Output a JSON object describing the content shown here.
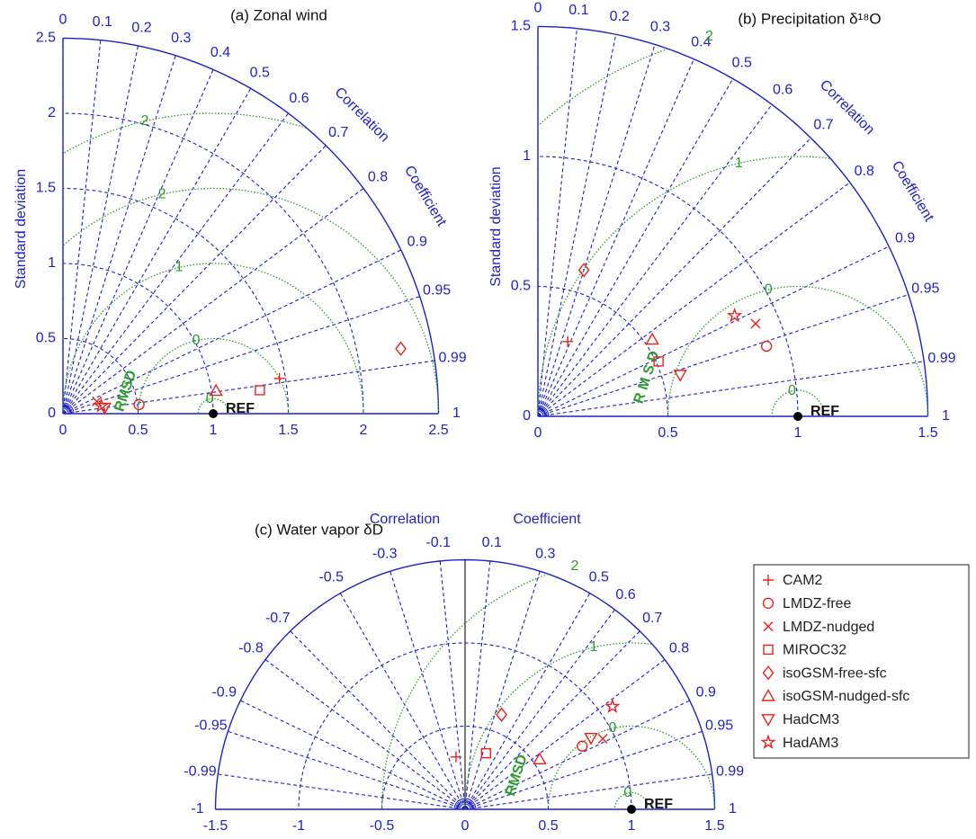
{
  "chart_data": [
    {
      "type": "taylor",
      "title": "(a) Zonal wind",
      "y_label": "Standard deviation",
      "corr_title": [
        "Correlation",
        "Coefficient"
      ],
      "ylim": [
        0,
        2.5
      ],
      "std_ticks": [
        0,
        0.5,
        1,
        1.5,
        2,
        2.5
      ],
      "corr_ticks": [
        0,
        0.1,
        0.2,
        0.3,
        0.4,
        0.5,
        0.6,
        0.7,
        0.8,
        0.9,
        0.95,
        0.99,
        1
      ],
      "ref": 1,
      "ref_label": "REF",
      "rmsd_label": "RMSD",
      "rmsd_contours": [
        {
          "value": 0.1,
          "label": "0"
        },
        {
          "value": 0.5,
          "label": "0"
        },
        {
          "value": 1,
          "label": "1"
        },
        {
          "value": 1.5,
          "label": "2"
        },
        {
          "value": 2,
          "label": "2"
        }
      ],
      "axis_color": "#1f1fcc",
      "contour_color": "#2a9d2a",
      "marker_color": "#e8221a",
      "series": [
        {
          "marker": "plus",
          "std": 1.46,
          "corr": 0.987
        },
        {
          "marker": "circle",
          "std": 0.51,
          "corr": 0.993
        },
        {
          "marker": "x",
          "std": 0.24,
          "corr": 0.94
        },
        {
          "marker": "square",
          "std": 1.32,
          "corr": 0.993
        },
        {
          "marker": "diamond",
          "std": 2.29,
          "corr": 0.982
        },
        {
          "marker": "triangle",
          "std": 1.03,
          "corr": 0.989
        },
        {
          "marker": "triangle-down",
          "std": 0.28,
          "corr": 0.99
        },
        {
          "marker": "star",
          "std": 0.26,
          "corr": 0.98
        }
      ]
    },
    {
      "type": "taylor",
      "title": "(b) Precipitation δ¹⁸O",
      "y_label": "Standard deviation",
      "corr_title": [
        "Correlation",
        "Coefficient"
      ],
      "ylim": [
        0,
        1.5
      ],
      "std_ticks": [
        0,
        0.5,
        1,
        1.5
      ],
      "corr_ticks": [
        0,
        0.1,
        0.2,
        0.3,
        0.4,
        0.5,
        0.6,
        0.7,
        0.8,
        0.9,
        0.95,
        0.99,
        1
      ],
      "ref": 1,
      "ref_label": "REF",
      "rmsd_label": "R M S D",
      "rmsd_contours": [
        {
          "value": 0.1,
          "label": "0"
        },
        {
          "value": 0.5,
          "label": "0"
        },
        {
          "value": 1,
          "label": "1"
        },
        {
          "value": 1.5,
          "label": "2"
        }
      ],
      "axis_color": "#1f1fcc",
      "contour_color": "#2a9d2a",
      "marker_color": "#e8221a",
      "series": [
        {
          "marker": "plus",
          "std": 0.31,
          "corr": 0.37
        },
        {
          "marker": "circle",
          "std": 0.92,
          "corr": 0.956
        },
        {
          "marker": "x",
          "std": 0.91,
          "corr": 0.92
        },
        {
          "marker": "square",
          "std": 0.51,
          "corr": 0.91
        },
        {
          "marker": "diamond",
          "std": 0.59,
          "corr": 0.3
        },
        {
          "marker": "triangle",
          "std": 0.53,
          "corr": 0.83
        },
        {
          "marker": "triangle-down",
          "std": 0.57,
          "corr": 0.96
        },
        {
          "marker": "star",
          "std": 0.85,
          "corr": 0.89
        }
      ]
    },
    {
      "type": "taylor",
      "title": "(c) Water vapor δD",
      "corr_title": [
        "Correlation",
        "Coefficient"
      ],
      "xlim": [
        -1.5,
        1.5
      ],
      "xticks": [
        -1.5,
        -1,
        -0.5,
        0,
        0.5,
        1,
        1.5
      ],
      "corr_ticks": [
        -1,
        -0.99,
        -0.95,
        -0.9,
        -0.8,
        -0.7,
        -0.5,
        -0.3,
        -0.1,
        0.1,
        0.3,
        0.5,
        0.6,
        0.7,
        0.8,
        0.9,
        0.95,
        0.99,
        1
      ],
      "ref": 1,
      "ref_label": "REF",
      "rmsd_label": "RMSD",
      "rmsd_contours": [
        {
          "value": 0.1,
          "label": "0"
        },
        {
          "value": 0.5,
          "label": "0"
        },
        {
          "value": 1,
          "label": "1"
        },
        {
          "value": 1.5,
          "label": "2"
        }
      ],
      "axis_color": "#1f1fcc",
      "contour_color": "#2a9d2a",
      "marker_color": "#e8221a",
      "series": [
        {
          "name": "CAM2",
          "marker": "plus",
          "std": 0.32,
          "corr": -0.17
        },
        {
          "name": "LMDZ-free",
          "marker": "circle",
          "std": 0.8,
          "corr": 0.88
        },
        {
          "name": "LMDZ-nudged",
          "marker": "x",
          "std": 0.93,
          "corr": 0.89
        },
        {
          "name": "MIROC32",
          "marker": "square",
          "std": 0.36,
          "corr": 0.35
        },
        {
          "name": "isoGSM-free-sfc",
          "marker": "diamond",
          "std": 0.61,
          "corr": 0.36
        },
        {
          "name": "isoGSM-nudged-sfc",
          "marker": "triangle",
          "std": 0.54,
          "corr": 0.83
        },
        {
          "name": "HadCM3",
          "marker": "triangle-down",
          "std": 0.87,
          "corr": 0.87
        },
        {
          "name": "HadAM3",
          "marker": "star",
          "std": 1.08,
          "corr": 0.82
        }
      ]
    }
  ]
}
